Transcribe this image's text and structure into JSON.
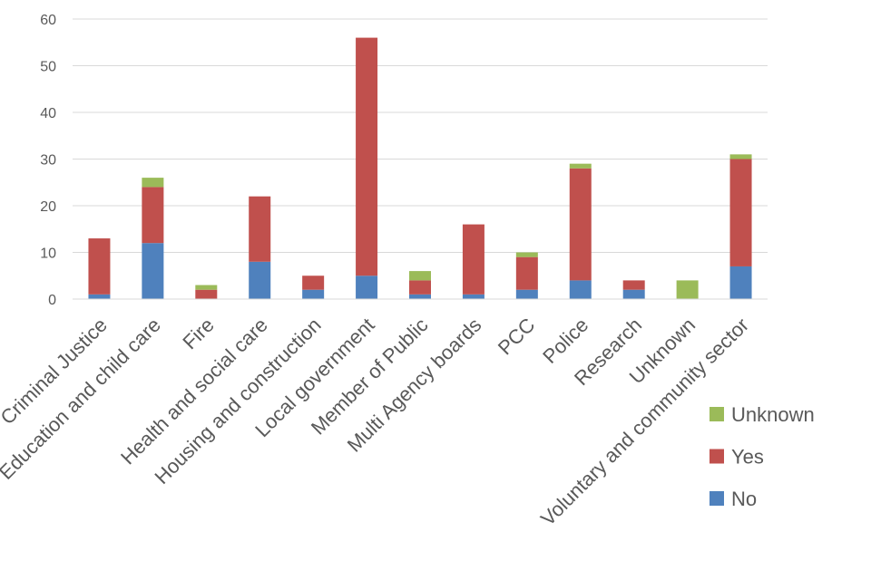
{
  "chart_data": {
    "type": "bar",
    "stacked": true,
    "title": "",
    "xlabel": "",
    "ylabel": "",
    "ylim": [
      0,
      60
    ],
    "yticks": [
      0,
      10,
      20,
      30,
      40,
      50,
      60
    ],
    "grid": true,
    "legend_position": "bottom-right",
    "categories": [
      "Criminal Justice",
      "Education and child care",
      "Fire",
      "Health and social care",
      "Housing and construction",
      "Local government",
      "Member of Public",
      "Multi Agency boards",
      "PCC",
      "Police",
      "Research",
      "Unknown",
      "Voluntary and community sector"
    ],
    "series": [
      {
        "name": "No",
        "color": "#4f81bd",
        "values": [
          1,
          12,
          0,
          8,
          2,
          5,
          1,
          1,
          2,
          4,
          2,
          0,
          7
        ]
      },
      {
        "name": "Yes",
        "color": "#c0504d",
        "values": [
          12,
          12,
          2,
          14,
          3,
          51,
          3,
          15,
          7,
          24,
          2,
          0,
          23
        ]
      },
      {
        "name": "Unknown",
        "color": "#9bbb59",
        "values": [
          0,
          2,
          1,
          0,
          0,
          0,
          2,
          0,
          1,
          1,
          0,
          4,
          1
        ]
      }
    ],
    "legend_order": [
      "Unknown",
      "Yes",
      "No"
    ],
    "colors": {
      "gridline": "#d9d9d9",
      "axis": "#d9d9d9",
      "text": "#595959"
    }
  }
}
